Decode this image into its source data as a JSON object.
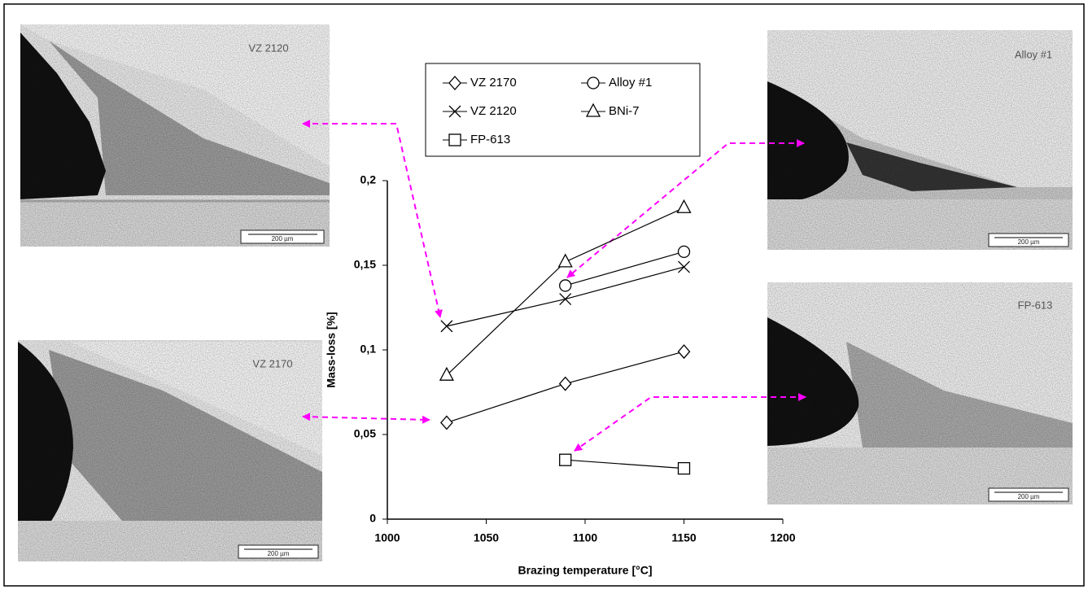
{
  "chart_data": {
    "type": "line",
    "x_label": "Brazing temperature  [°C]",
    "y_label": "Mass-loss [%]",
    "x": [
      1030,
      1090,
      1150
    ],
    "series": [
      {
        "name": "VZ 2170",
        "color": "#000000",
        "marker": "diamond",
        "values": [
          0.057,
          0.08,
          0.099
        ]
      },
      {
        "name": "VZ 2120",
        "color": "#000000",
        "marker": "cross",
        "values": [
          0.114,
          0.13,
          0.149
        ]
      },
      {
        "name": "FP-613",
        "color": "#000000",
        "marker": "square",
        "values": [
          null,
          0.035,
          0.03
        ]
      },
      {
        "name": "Alloy #1",
        "color": "#000000",
        "marker": "circle",
        "values": [
          null,
          0.138,
          0.158
        ]
      },
      {
        "name": "BNi-7",
        "color": "#000000",
        "marker": "triangle",
        "values": [
          0.085,
          0.152,
          0.184
        ]
      }
    ],
    "xlim": [
      1000,
      1200
    ],
    "xticks": [
      1000,
      1050,
      1100,
      1150,
      1200
    ],
    "ylim": [
      0,
      0.2
    ],
    "yticks": [
      0,
      {
        "value": 0.05,
        "label": "0,05"
      },
      {
        "value": 0.1,
        "label": "0,1"
      },
      {
        "value": 0.15,
        "label": "0,15"
      },
      {
        "value": 0.2,
        "label": "0,2"
      }
    ],
    "grid": false
  },
  "micrographs": [
    {
      "label": "VZ 2120",
      "scale": "200 µm"
    },
    {
      "label": "VZ 2170",
      "scale": "200 µm"
    },
    {
      "label": "Alloy #1",
      "scale": "200 µm"
    },
    {
      "label": "FP-613",
      "scale": "200 µm"
    }
  ]
}
